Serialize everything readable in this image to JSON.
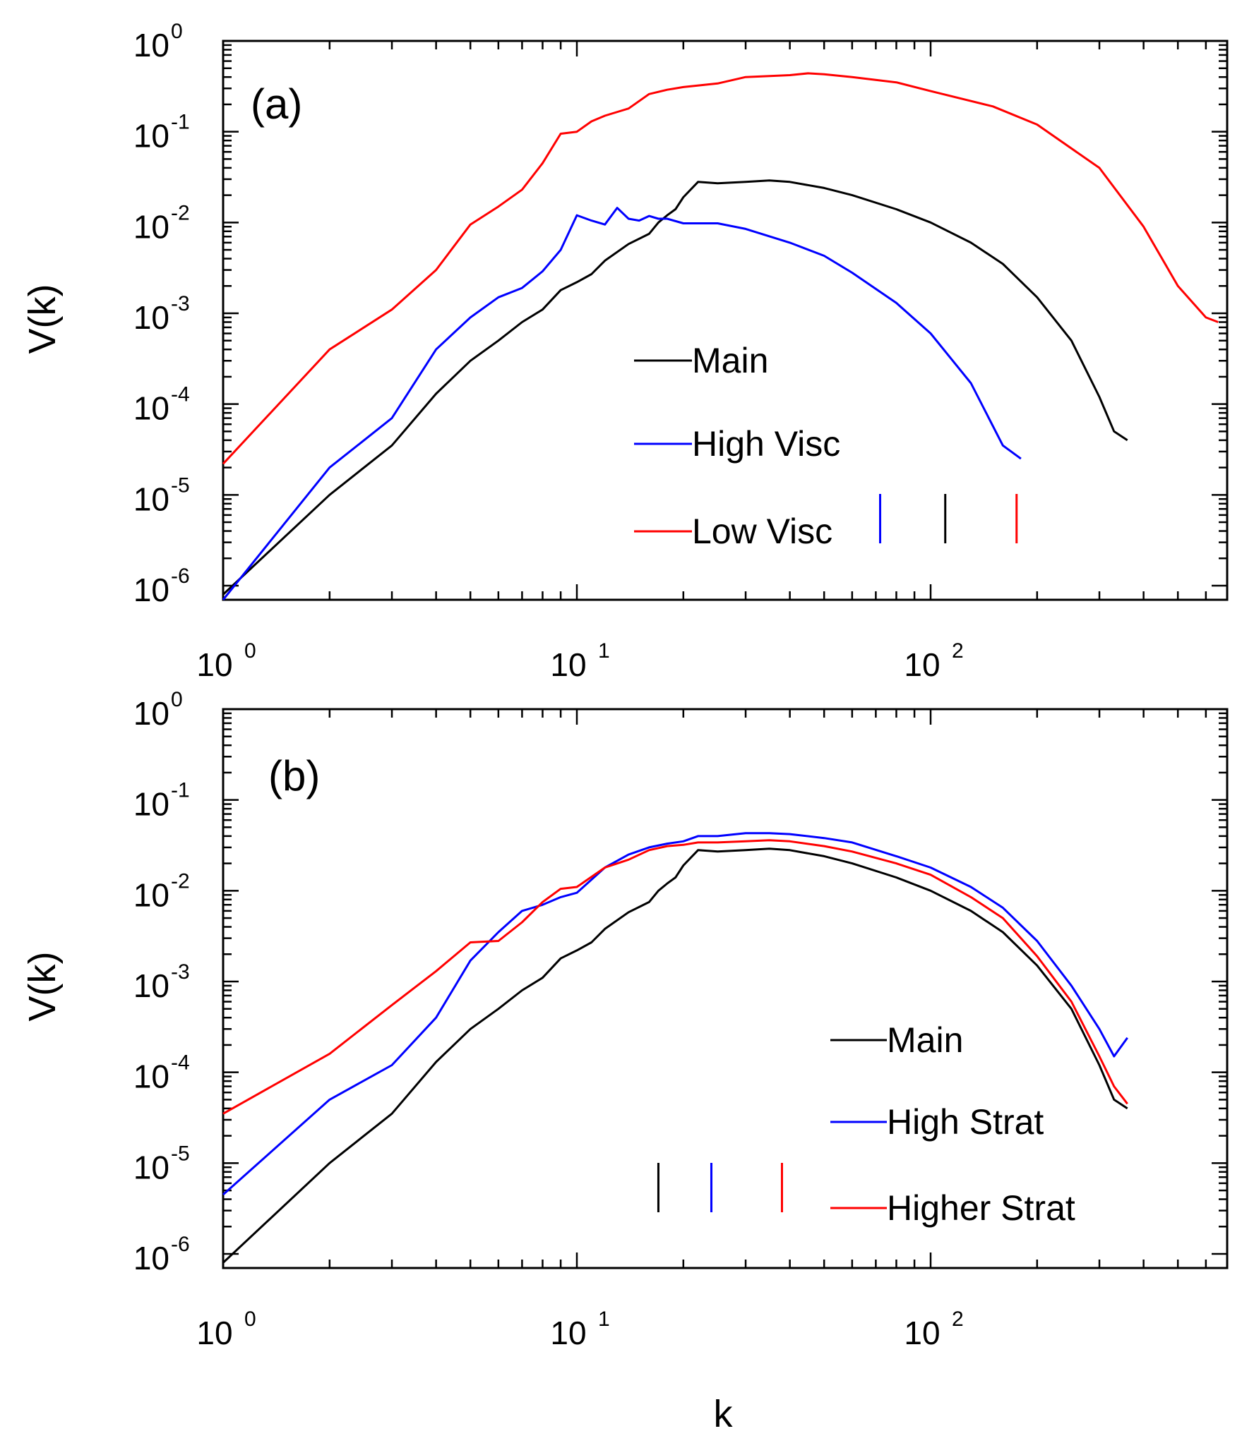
{
  "chart_data": [
    {
      "type": "line",
      "panel_label": "(a)",
      "xscale": "log",
      "yscale": "log",
      "xlim": [
        1,
        700
      ],
      "ylim": [
        6e-07,
        1
      ],
      "xlabel": "",
      "ylabel": "V(k)",
      "x_ticks": [
        {
          "base": "10",
          "exp": "0"
        },
        {
          "base": "10",
          "exp": "1"
        },
        {
          "base": "10",
          "exp": "2"
        }
      ],
      "y_ticks": [
        {
          "base": "10",
          "exp": "0"
        },
        {
          "base": "10",
          "exp": "-1"
        },
        {
          "base": "10",
          "exp": "-2"
        },
        {
          "base": "10",
          "exp": "-3"
        },
        {
          "base": "10",
          "exp": "-4"
        },
        {
          "base": "10",
          "exp": "-5"
        },
        {
          "base": "10",
          "exp": "-6"
        }
      ],
      "legend_position": "center-right",
      "series": [
        {
          "name": "Main",
          "color": "#000000",
          "x": [
            1,
            2,
            3,
            4,
            5,
            6,
            7,
            8,
            9,
            10,
            11,
            12,
            14,
            16,
            17,
            18,
            19,
            20,
            22,
            25,
            30,
            35,
            40,
            50,
            60,
            80,
            100,
            130,
            160,
            200,
            250,
            300,
            330,
            360
          ],
          "y": [
            8e-07,
            1e-05,
            3.5e-05,
            0.00013,
            0.0003,
            0.0005,
            0.0008,
            0.0011,
            0.0018,
            0.0022,
            0.0027,
            0.0038,
            0.0058,
            0.0075,
            0.01,
            0.012,
            0.014,
            0.019,
            0.028,
            0.027,
            0.028,
            0.029,
            0.028,
            0.024,
            0.02,
            0.014,
            0.01,
            0.006,
            0.0035,
            0.0015,
            0.0005,
            0.00012,
            5e-05,
            4e-05
          ]
        },
        {
          "name": "High Visc",
          "color": "#0000ff",
          "x": [
            1,
            2,
            3,
            4,
            5,
            6,
            7,
            8,
            9,
            10,
            11,
            12,
            13,
            14,
            15,
            16,
            17,
            18,
            20,
            25,
            30,
            40,
            50,
            60,
            80,
            100,
            130,
            160,
            180
          ],
          "y": [
            7e-07,
            2e-05,
            7e-05,
            0.0004,
            0.0009,
            0.0015,
            0.0019,
            0.0029,
            0.005,
            0.012,
            0.0105,
            0.0095,
            0.0145,
            0.011,
            0.0105,
            0.0118,
            0.011,
            0.011,
            0.0098,
            0.0098,
            0.0085,
            0.006,
            0.0043,
            0.0028,
            0.0013,
            0.0006,
            0.00017,
            3.5e-05,
            2.5e-05
          ]
        },
        {
          "name": "Low Visc",
          "color": "#ff0000",
          "x": [
            1,
            2,
            3,
            4,
            5,
            6,
            7,
            8,
            9,
            10,
            11,
            12,
            14,
            16,
            18,
            20,
            25,
            30,
            40,
            45,
            50,
            60,
            80,
            100,
            150,
            200,
            300,
            400,
            500,
            600,
            650
          ],
          "y": [
            2.2e-05,
            0.0004,
            0.0011,
            0.003,
            0.0095,
            0.015,
            0.023,
            0.045,
            0.095,
            0.1,
            0.13,
            0.15,
            0.18,
            0.26,
            0.29,
            0.31,
            0.34,
            0.4,
            0.42,
            0.44,
            0.43,
            0.4,
            0.35,
            0.28,
            0.19,
            0.12,
            0.04,
            0.009,
            0.002,
            0.0009,
            0.0008
          ]
        }
      ],
      "markers": [
        {
          "x": 72,
          "color": "#0000ff"
        },
        {
          "x": 110,
          "color": "#000000"
        },
        {
          "x": 175,
          "color": "#ff0000"
        }
      ]
    },
    {
      "type": "line",
      "panel_label": "(b)",
      "xscale": "log",
      "yscale": "log",
      "xlim": [
        1,
        700
      ],
      "ylim": [
        6e-07,
        1
      ],
      "xlabel": "k",
      "ylabel": "V(k)",
      "x_ticks": [
        {
          "base": "10",
          "exp": "0"
        },
        {
          "base": "10",
          "exp": "1"
        },
        {
          "base": "10",
          "exp": "2"
        }
      ],
      "y_ticks": [
        {
          "base": "10",
          "exp": "0"
        },
        {
          "base": "10",
          "exp": "-1"
        },
        {
          "base": "10",
          "exp": "-2"
        },
        {
          "base": "10",
          "exp": "-3"
        },
        {
          "base": "10",
          "exp": "-4"
        },
        {
          "base": "10",
          "exp": "-5"
        },
        {
          "base": "10",
          "exp": "-6"
        }
      ],
      "legend_position": "lower-right",
      "series": [
        {
          "name": "Main",
          "color": "#000000",
          "x": [
            1,
            2,
            3,
            4,
            5,
            6,
            7,
            8,
            9,
            10,
            11,
            12,
            14,
            16,
            17,
            18,
            19,
            20,
            22,
            25,
            30,
            35,
            40,
            50,
            60,
            80,
            100,
            130,
            160,
            200,
            250,
            300,
            330,
            360
          ],
          "y": [
            8e-07,
            1e-05,
            3.5e-05,
            0.00013,
            0.0003,
            0.0005,
            0.0008,
            0.0011,
            0.0018,
            0.0022,
            0.0027,
            0.0038,
            0.0058,
            0.0075,
            0.01,
            0.012,
            0.014,
            0.019,
            0.028,
            0.027,
            0.028,
            0.029,
            0.028,
            0.024,
            0.02,
            0.014,
            0.01,
            0.006,
            0.0035,
            0.0015,
            0.0005,
            0.00012,
            5e-05,
            4e-05
          ]
        },
        {
          "name": "High Strat",
          "color": "#0000ff",
          "x": [
            1,
            2,
            3,
            4,
            5,
            6,
            7,
            8,
            9,
            10,
            12,
            14,
            16,
            18,
            20,
            22,
            25,
            30,
            35,
            40,
            50,
            60,
            80,
            100,
            130,
            160,
            200,
            250,
            300,
            330,
            360
          ],
          "y": [
            4.5e-06,
            5e-05,
            0.00012,
            0.0004,
            0.0017,
            0.0035,
            0.006,
            0.007,
            0.0085,
            0.0095,
            0.018,
            0.025,
            0.03,
            0.033,
            0.035,
            0.04,
            0.04,
            0.043,
            0.043,
            0.042,
            0.038,
            0.034,
            0.024,
            0.018,
            0.011,
            0.0065,
            0.0028,
            0.0009,
            0.0003,
            0.00015,
            0.00024
          ]
        },
        {
          "name": "Higher Strat",
          "color": "#ff0000",
          "x": [
            1,
            2,
            3,
            4,
            5,
            6,
            7,
            8,
            9,
            10,
            12,
            14,
            16,
            18,
            20,
            22,
            25,
            30,
            35,
            40,
            50,
            60,
            80,
            100,
            130,
            160,
            200,
            250,
            300,
            330,
            360
          ],
          "y": [
            3.5e-05,
            0.00016,
            0.00055,
            0.0013,
            0.0027,
            0.0028,
            0.0045,
            0.0075,
            0.0105,
            0.011,
            0.018,
            0.022,
            0.028,
            0.031,
            0.032,
            0.034,
            0.034,
            0.035,
            0.036,
            0.035,
            0.031,
            0.027,
            0.02,
            0.015,
            0.0085,
            0.005,
            0.0019,
            0.0006,
            0.00015,
            7e-05,
            4.5e-05
          ]
        }
      ],
      "markers": [
        {
          "x": 17,
          "color": "#000000"
        },
        {
          "x": 24,
          "color": "#0000ff"
        },
        {
          "x": 38,
          "color": "#ff0000"
        }
      ]
    }
  ]
}
